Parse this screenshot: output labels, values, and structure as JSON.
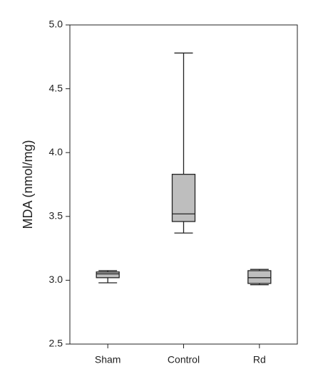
{
  "chart_data": {
    "type": "box",
    "y_label": "MDA (nmol/mg)",
    "categories": [
      "Sham",
      "Control",
      "Rd"
    ],
    "boxes": [
      {
        "min": 2.98,
        "q1": 3.02,
        "median": 3.05,
        "q3": 3.065,
        "max": 3.075
      },
      {
        "min": 3.37,
        "q1": 3.46,
        "median": 3.52,
        "q3": 3.83,
        "max": 4.78
      },
      {
        "min": 2.965,
        "q1": 2.975,
        "median": 3.02,
        "q3": 3.075,
        "max": 3.085
      }
    ],
    "color": "#bebebe",
    "ylim": [
      2.5,
      5.0
    ],
    "yticks": [
      2.5,
      {
        "value": 3.0,
        "label": "3.0"
      },
      3.5,
      {
        "value": 4.0,
        "label": "4.0"
      },
      4.5,
      {
        "value": 5.0,
        "label": "5.0"
      }
    ]
  }
}
